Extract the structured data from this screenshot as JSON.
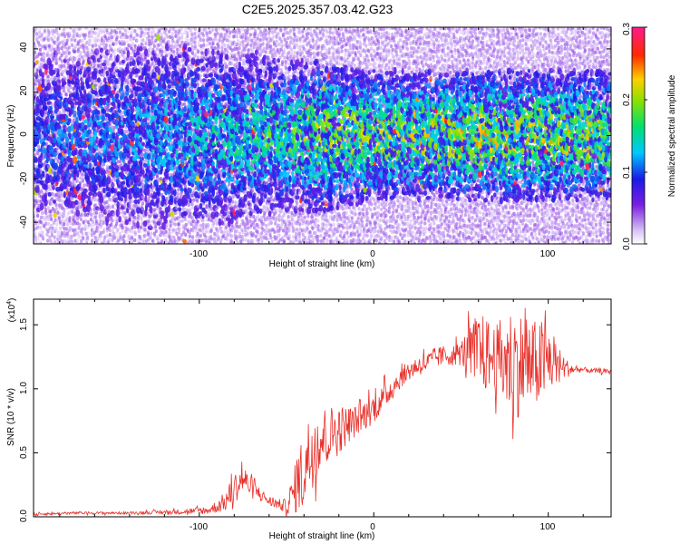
{
  "title": "C2E5.2025.357.03.42.G23",
  "colors": {
    "line": "#e8302a",
    "axis": "#000000",
    "background": "#ffffff"
  },
  "chart_data": [
    {
      "type": "heatmap",
      "title": "C2E5.2025.357.03.42.G23",
      "xlabel": "Height of straight line (km)",
      "ylabel": "Frequency (Hz)",
      "xlim": [
        -195,
        136
      ],
      "ylim": [
        -50,
        50
      ],
      "xticks": [
        -100,
        0,
        100
      ],
      "xtick_labels": [
        "-100",
        "0",
        "100"
      ],
      "yticks": [
        -40,
        -20,
        0,
        20,
        40
      ],
      "ytick_labels": [
        "-40",
        "-20",
        "0",
        "20",
        "40"
      ],
      "colorbar": {
        "label": "Normalized spectral amplitude",
        "range": [
          0.0,
          0.3
        ],
        "ticks": [
          0.0,
          0.1,
          0.2,
          0.3
        ],
        "tick_labels": [
          "0.0",
          "0.1",
          "0.2",
          "0.3"
        ],
        "colormap": "rainbow (lavender, violet, blue, cyan, green, yellow, red, magenta)"
      },
      "grid": false,
      "profile": [
        {
          "x": -195,
          "band": 50,
          "amp": 0.07
        },
        {
          "x": -150,
          "band": 50,
          "amp": 0.08
        },
        {
          "x": -110,
          "band": 50,
          "amp": 0.09
        },
        {
          "x": -100,
          "band": 45,
          "amp": 0.1
        },
        {
          "x": -50,
          "band": 35,
          "amp": 0.12
        },
        {
          "x": -30,
          "band": 35,
          "amp": 0.14
        },
        {
          "x": 0,
          "band": 30,
          "amp": 0.14
        },
        {
          "x": 50,
          "band": 30,
          "amp": 0.15
        },
        {
          "x": 100,
          "band": 30,
          "amp": 0.15
        },
        {
          "x": 136,
          "band": 30,
          "amp": 0.14
        }
      ]
    },
    {
      "type": "line",
      "xlabel": "Height of straight line (km)",
      "ylabel": "SNR (10 * v/v)",
      "y_multiplier": "(x10",
      "y_multiplier_exp": "4",
      "xlim": [
        -195,
        136
      ],
      "ylim": [
        0,
        1.7
      ],
      "xticks": [
        -100,
        0,
        100
      ],
      "xtick_labels": [
        "-100",
        "0",
        "100"
      ],
      "yticks": [
        0.0,
        0.5,
        1.0,
        1.5
      ],
      "ytick_labels": [
        "0.0",
        "0.5",
        "1.0",
        "1.5"
      ],
      "grid": false,
      "series": [
        {
          "x": [
            -195,
            -170,
            -140,
            -110,
            -95,
            -90,
            -85,
            -80,
            -75,
            -70,
            -65,
            -60,
            -55,
            -50,
            -45,
            -40,
            -35,
            -30,
            -25,
            -20,
            -15,
            -10,
            -5,
            0,
            5,
            10,
            15,
            20,
            25,
            30,
            35,
            40,
            45,
            50,
            55,
            60,
            65,
            70,
            75,
            80,
            85,
            90,
            95,
            100,
            105,
            110,
            115,
            120,
            125,
            130,
            136
          ],
          "y": [
            0.02,
            0.03,
            0.03,
            0.04,
            0.05,
            0.08,
            0.12,
            0.22,
            0.3,
            0.22,
            0.18,
            0.12,
            0.1,
            0.08,
            0.22,
            0.38,
            0.55,
            0.62,
            0.65,
            0.68,
            0.72,
            0.75,
            0.8,
            0.85,
            0.92,
            1.0,
            1.08,
            1.14,
            1.18,
            1.2,
            1.24,
            1.26,
            1.26,
            1.28,
            1.3,
            1.3,
            1.26,
            1.24,
            1.22,
            1.2,
            1.2,
            1.18,
            1.2,
            1.22,
            1.2,
            1.16,
            1.15,
            1.15,
            1.14,
            1.14,
            1.13
          ],
          "noise": [
            0.01,
            0.01,
            0.01,
            0.02,
            0.03,
            0.05,
            0.08,
            0.12,
            0.12,
            0.08,
            0.05,
            0.04,
            0.04,
            0.06,
            0.2,
            0.32,
            0.32,
            0.25,
            0.22,
            0.2,
            0.15,
            0.12,
            0.12,
            0.12,
            0.1,
            0.1,
            0.08,
            0.08,
            0.08,
            0.08,
            0.08,
            0.08,
            0.08,
            0.1,
            0.2,
            0.3,
            0.3,
            0.25,
            0.4,
            0.45,
            0.4,
            0.35,
            0.35,
            0.3,
            0.15,
            0.08,
            0.03,
            0.02,
            0.02,
            0.02,
            0.02
          ]
        }
      ]
    }
  ]
}
